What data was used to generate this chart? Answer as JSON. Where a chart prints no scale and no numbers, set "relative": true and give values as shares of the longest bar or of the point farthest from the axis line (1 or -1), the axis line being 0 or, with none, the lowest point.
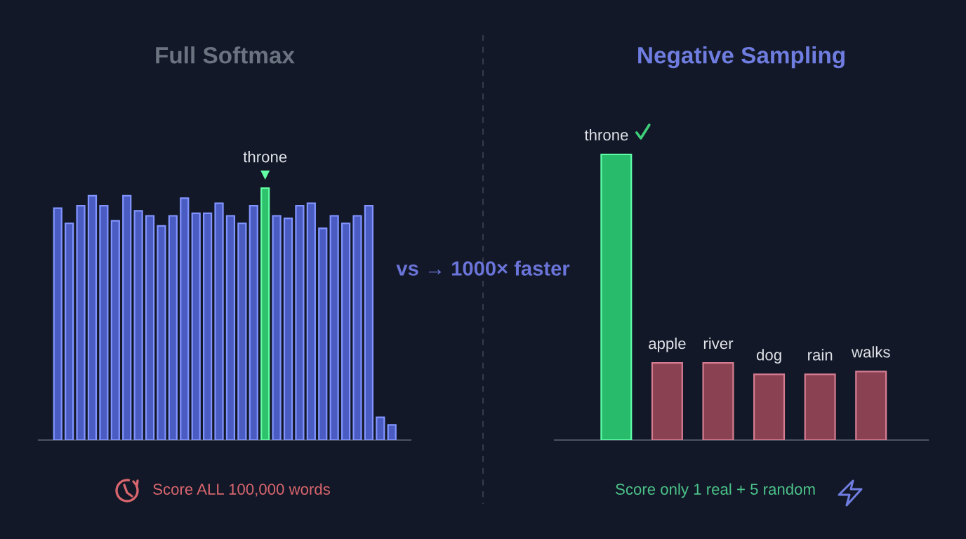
{
  "chart_data": [
    {
      "type": "bar",
      "title": "Full Softmax",
      "xlabel": "Score ALL 100,000 words",
      "categories": [
        null,
        null,
        null,
        null,
        null,
        null,
        null,
        null,
        null,
        null,
        null,
        null,
        null,
        null,
        null,
        null,
        null,
        null,
        "throne",
        null,
        null,
        null,
        null,
        null,
        null,
        null,
        null,
        null,
        null,
        null
      ],
      "values": [
        0.92,
        0.86,
        0.93,
        0.97,
        0.93,
        0.87,
        0.97,
        0.91,
        0.89,
        0.85,
        0.89,
        0.96,
        0.9,
        0.9,
        0.94,
        0.89,
        0.86,
        0.93,
        1,
        0.89,
        0.88,
        0.93,
        0.94,
        0.84,
        0.89,
        0.86,
        0.89,
        0.93,
        0.09,
        0.06
      ],
      "colors": [
        "#4a5cc2",
        "#4a5cc2",
        "#4a5cc2",
        "#4a5cc2",
        "#4a5cc2",
        "#4a5cc2",
        "#4a5cc2",
        "#4a5cc2",
        "#4a5cc2",
        "#4a5cc2",
        "#4a5cc2",
        "#4a5cc2",
        "#4a5cc2",
        "#4a5cc2",
        "#4a5cc2",
        "#4a5cc2",
        "#4a5cc2",
        "#4a5cc2",
        "#2ec26c",
        "#4a5cc2",
        "#4a5cc2",
        "#4a5cc2",
        "#4a5cc2",
        "#4a5cc2",
        "#4a5cc2",
        "#4a5cc2",
        "#4a5cc2",
        "#4a5cc2",
        "#4a5cc2",
        "#4a5cc2"
      ],
      "relative": true,
      "tick_labels": "x",
      "annotations": [
        "vs → 1000× faster"
      ]
    },
    {
      "type": "bar",
      "title": "Negative Sampling",
      "xlabel": "Score only 1 real + 5 random",
      "categories": [
        "throne",
        "apple",
        "river",
        "dog",
        "rain",
        "walks"
      ],
      "values": [
        1,
        0.27,
        0.27,
        0.23,
        0.23,
        0.24
      ],
      "colors": [
        "#28bb6c",
        "#8a4152",
        "#8a4152",
        "#8a4152",
        "#8a4152",
        "#8a4152"
      ],
      "relative": true,
      "tick_labels": "x"
    }
  ]
}
